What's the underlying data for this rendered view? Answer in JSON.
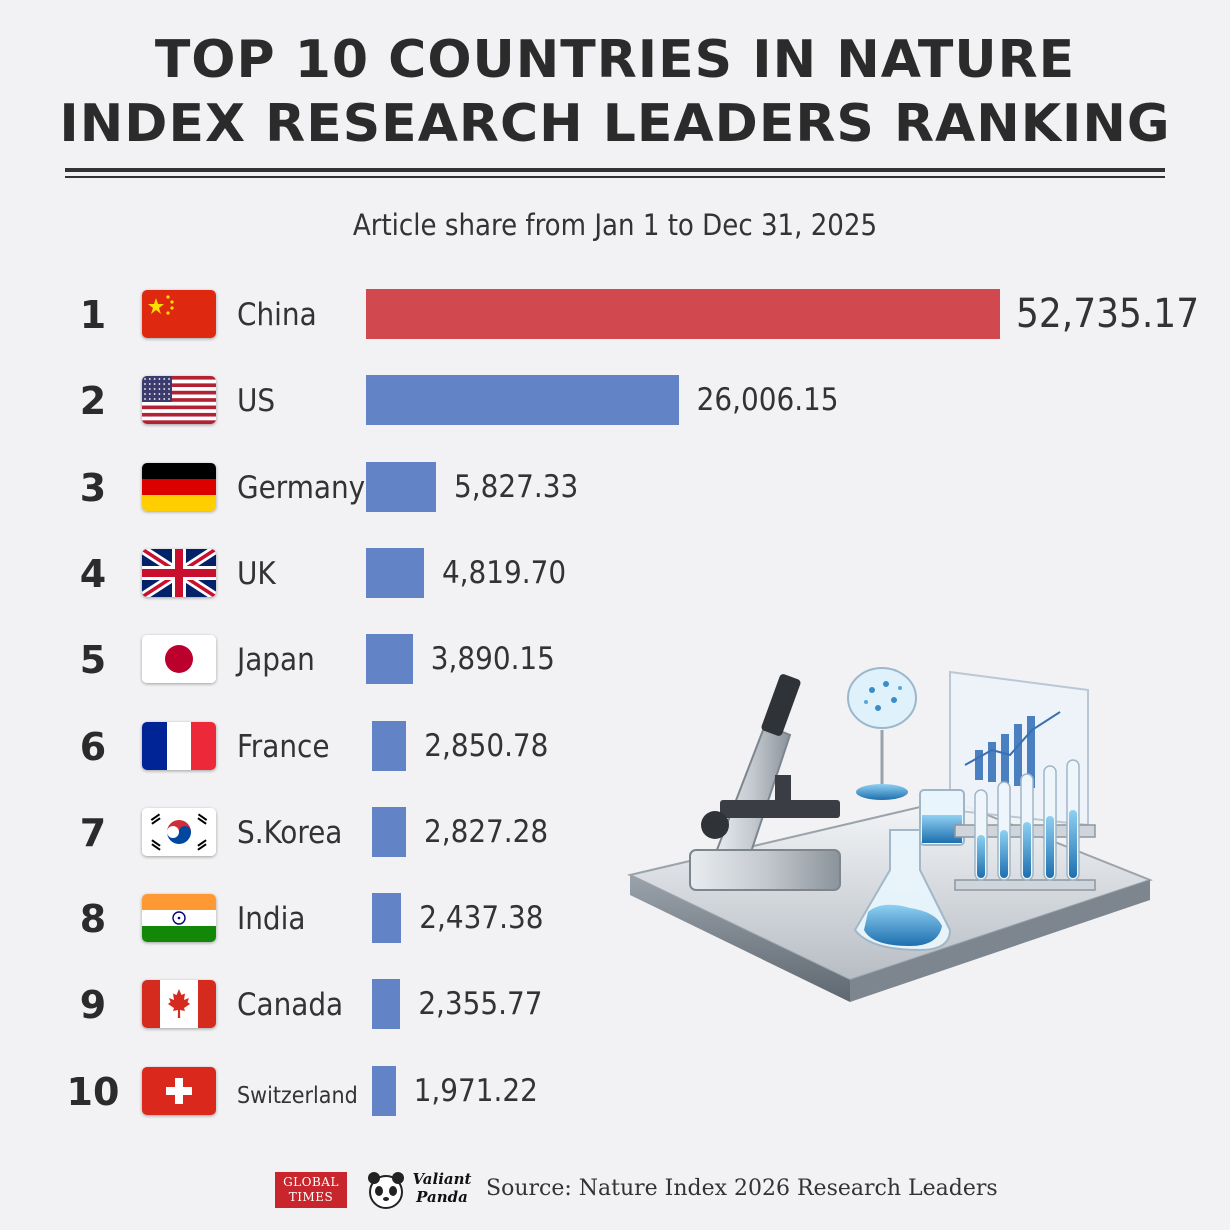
{
  "title_line1": "TOP 10 COUNTRIES IN NATURE",
  "title_line2": "INDEX RESEARCH LEADERS RANKING",
  "subtitle": "Article share from Jan 1 to Dec 31, 2025",
  "colors": {
    "first_bar": "#d2484f",
    "other_bars": "#6283c6"
  },
  "chart_data": {
    "type": "bar",
    "orientation": "horizontal",
    "title": "TOP 10 COUNTRIES IN NATURE INDEX RESEARCH LEADERS RANKING",
    "subtitle": "Article share from Jan 1 to Dec 31, 2025",
    "categories": [
      "China",
      "US",
      "Germany",
      "UK",
      "Japan",
      "France",
      "S.Korea",
      "India",
      "Canada",
      "Switzerland"
    ],
    "ranks": [
      "1",
      "2",
      "3",
      "4",
      "5",
      "6",
      "7",
      "8",
      "9",
      "10"
    ],
    "values": [
      52735.17,
      26006.15,
      5827.33,
      4819.7,
      3890.15,
      2850.78,
      2827.28,
      2437.38,
      2355.77,
      1971.22
    ],
    "value_labels": [
      "52,735.17",
      "26,006.15",
      "5,827.33",
      "4,819.70",
      "3,890.15",
      "2,850.78",
      "2,827.28",
      "2,437.38",
      "2,355.77",
      "1,971.22"
    ],
    "flag_icons": [
      "china-flag-icon",
      "us-flag-icon",
      "germany-flag-icon",
      "uk-flag-icon",
      "japan-flag-icon",
      "france-flag-icon",
      "south-korea-flag-icon",
      "india-flag-icon",
      "canada-flag-icon",
      "switzerland-flag-icon"
    ],
    "xlim": [
      0,
      52735.17
    ],
    "grid": false,
    "legend": "none"
  },
  "footer": {
    "logo1": "GLOBAL TIMES",
    "logo2_line1": "Valiant",
    "logo2_line2": "Panda",
    "source": "Source: Nature Index 2026 Research Leaders"
  }
}
